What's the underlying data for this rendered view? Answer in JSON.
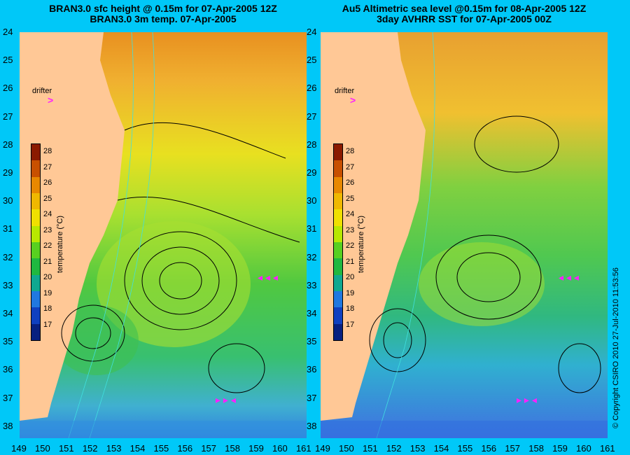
{
  "left_panel": {
    "title_line1": "BRAN3.0 sfc height @ 0.15m for 07-Apr-2005 12Z",
    "title_line2": "BRAN3.0 3m temp. 07-Apr-2005"
  },
  "right_panel": {
    "title_line1": "Au5 Altimetric sea level  @0.15m  for 08-Apr-2005 12Z",
    "title_line2": "3day AVHRR SST for 07-Apr-2005 00Z"
  },
  "drifter_label": "drifter",
  "drifter_symbol": ">",
  "lat_ticks": [
    "24",
    "25",
    "26",
    "27",
    "28",
    "29",
    "30",
    "31",
    "32",
    "33",
    "34",
    "35",
    "36",
    "37",
    "38"
  ],
  "lon_ticks": [
    "149",
    "150",
    "151",
    "152",
    "153",
    "154",
    "155",
    "156",
    "157",
    "158",
    "159",
    "160",
    "161"
  ],
  "colorbar": {
    "title": "temperature (°C)",
    "labels": [
      "28",
      "27",
      "26",
      "25",
      "24",
      "23",
      "22",
      "21",
      "20",
      "19",
      "18",
      "17"
    ],
    "colors": [
      "#8b1a00",
      "#c85000",
      "#e88800",
      "#f0b800",
      "#f0e000",
      "#b8e800",
      "#58d020",
      "#20b840",
      "#10a890",
      "#2078e0",
      "#1040c0",
      "#082080"
    ]
  },
  "copyright": "© Copyright CSIRO 2010    27-Jul-2010 11:53:56",
  "colors": {
    "background": "#00c8f8",
    "land": "#ffc896",
    "drifter": "#ff20ff"
  }
}
